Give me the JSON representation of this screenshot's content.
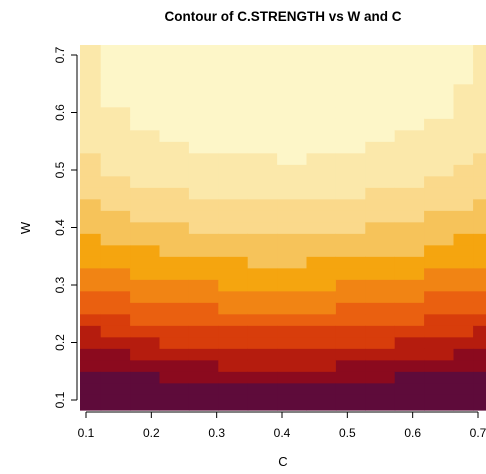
{
  "chart_data": {
    "type": "heatmap",
    "title": "Contour of C.STRENGTH vs W and C",
    "xlabel": "C",
    "ylabel": "W",
    "xlim": [
      0.1,
      0.7
    ],
    "ylim": [
      0.1,
      0.7
    ],
    "x_ticks": [
      "0.1",
      "0.2",
      "0.3",
      "0.4",
      "0.5",
      "0.6",
      "0.7"
    ],
    "y_ticks": [
      "0.1",
      "0.2",
      "0.3",
      "0.4",
      "0.5",
      "0.6",
      "0.7"
    ],
    "grid_x": [
      0.1,
      0.145,
      0.19,
      0.235,
      0.28,
      0.325,
      0.37,
      0.415,
      0.46,
      0.505,
      0.55,
      0.595,
      0.64,
      0.685,
      0.7
    ],
    "grid_y": [
      0.1,
      0.12,
      0.14,
      0.16,
      0.18,
      0.2,
      0.22,
      0.24,
      0.26,
      0.28,
      0.3,
      0.32,
      0.34,
      0.36,
      0.38,
      0.4,
      0.42,
      0.44,
      0.46,
      0.48,
      0.5,
      0.52,
      0.54,
      0.56,
      0.58,
      0.6,
      0.62,
      0.64,
      0.66,
      0.68,
      0.7
    ],
    "palette": [
      "#5e0b3a",
      "#8b0a1e",
      "#b51c0e",
      "#d83d0b",
      "#ea6010",
      "#f18414",
      "#f5a50f",
      "#f6c35a",
      "#fad98b",
      "#fbe8aa",
      "#fdf6c8"
    ],
    "grid": false,
    "legend": "none"
  }
}
